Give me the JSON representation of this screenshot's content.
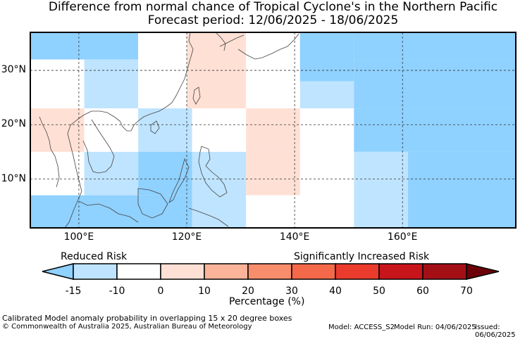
{
  "title": {
    "line1": "Difference from normal chance of Tropical Cyclone's in the Northern Pacific",
    "line2": "Forecast period: 12/06/2025 - 18/06/2025"
  },
  "map": {
    "lon_ticks": [
      "100°E",
      "120°E",
      "140°E",
      "160°E"
    ],
    "lat_ticks": [
      "30°N",
      "20°N",
      "10°N"
    ],
    "lon_range": [
      91,
      181
    ],
    "lat_range": [
      1,
      37
    ],
    "cells": [
      {
        "lon": [
          91,
          111
        ],
        "lat": [
          32,
          37
        ],
        "value": -20
      },
      {
        "lon": [
          111,
          131
        ],
        "lat": [
          32,
          37
        ],
        "value": 0
      },
      {
        "lon": [
          131,
          151
        ],
        "lat": [
          32,
          37
        ],
        "value": 0
      },
      {
        "lon": [
          151,
          181
        ],
        "lat": [
          32,
          37
        ],
        "value": -20
      },
      {
        "lon": [
          91,
          101
        ],
        "lat": [
          28,
          32
        ],
        "value": 0
      },
      {
        "lon": [
          101,
          111
        ],
        "lat": [
          28,
          32
        ],
        "value": -12
      },
      {
        "lon": [
          111,
          120
        ],
        "lat": [
          28,
          37
        ],
        "value": 0
      },
      {
        "lon": [
          120,
          131
        ],
        "lat": [
          28,
          37
        ],
        "value": 5
      },
      {
        "lon": [
          131,
          141
        ],
        "lat": [
          28,
          37
        ],
        "value": 0
      },
      {
        "lon": [
          141,
          151
        ],
        "lat": [
          28,
          37
        ],
        "value": -20
      },
      {
        "lon": [
          141,
          151
        ],
        "lat": [
          23,
          28
        ],
        "value": -12
      },
      {
        "lon": [
          151,
          181
        ],
        "lat": [
          23,
          32
        ],
        "value": -20
      },
      {
        "lon": [
          101,
          111
        ],
        "lat": [
          23,
          28
        ],
        "value": -12
      },
      {
        "lon": [
          91,
          101
        ],
        "lat": [
          23,
          28
        ],
        "value": 0
      },
      {
        "lon": [
          111,
          120
        ],
        "lat": [
          23,
          28
        ],
        "value": 0
      },
      {
        "lon": [
          120,
          131
        ],
        "lat": [
          23,
          28
        ],
        "value": 5
      },
      {
        "lon": [
          131,
          141
        ],
        "lat": [
          23,
          28
        ],
        "value": 0
      },
      {
        "lon": [
          91,
          101
        ],
        "lat": [
          15,
          23
        ],
        "value": 5
      },
      {
        "lon": [
          101,
          111
        ],
        "lat": [
          15,
          23
        ],
        "value": 0
      },
      {
        "lon": [
          111,
          121
        ],
        "lat": [
          15,
          23
        ],
        "value": -12
      },
      {
        "lon": [
          121,
          131
        ],
        "lat": [
          15,
          23
        ],
        "value": 0
      },
      {
        "lon": [
          131,
          141
        ],
        "lat": [
          15,
          23
        ],
        "value": 5
      },
      {
        "lon": [
          141,
          151
        ],
        "lat": [
          15,
          23
        ],
        "value": 0
      },
      {
        "lon": [
          151,
          181
        ],
        "lat": [
          15,
          23
        ],
        "value": -20
      },
      {
        "lon": [
          91,
          101
        ],
        "lat": [
          7,
          15
        ],
        "value": 0
      },
      {
        "lon": [
          101,
          111
        ],
        "lat": [
          7,
          15
        ],
        "value": -12
      },
      {
        "lon": [
          111,
          121
        ],
        "lat": [
          7,
          15
        ],
        "value": -20
      },
      {
        "lon": [
          121,
          131
        ],
        "lat": [
          1,
          15
        ],
        "value": -12
      },
      {
        "lon": [
          131,
          141
        ],
        "lat": [
          7,
          15
        ],
        "value": 5
      },
      {
        "lon": [
          141,
          151
        ],
        "lat": [
          1,
          15
        ],
        "value": 0
      },
      {
        "lon": [
          151,
          161
        ],
        "lat": [
          1,
          15
        ],
        "value": -12
      },
      {
        "lon": [
          161,
          181
        ],
        "lat": [
          1,
          15
        ],
        "value": -20
      },
      {
        "lon": [
          131,
          141
        ],
        "lat": [
          1,
          7
        ],
        "value": 0
      },
      {
        "lon": [
          91,
          121
        ],
        "lat": [
          1,
          7
        ],
        "value": -20
      }
    ]
  },
  "colorbar": {
    "label_left": "Reduced Risk",
    "label_right": "Significantly Increased Risk",
    "ticks": [
      "-15",
      "-10",
      "0",
      "10",
      "20",
      "30",
      "40",
      "50",
      "60",
      "70"
    ],
    "colors": [
      "#8fd1ff",
      "#bfe4ff",
      "#ffffff",
      "#ffe0d4",
      "#fbb49a",
      "#f88d6c",
      "#f4694a",
      "#ea3b2c",
      "#c8151b",
      "#a40f16",
      "#6b0008"
    ],
    "xlabel": "Percentage (%)"
  },
  "footer": {
    "desc": "Calibrated Model anomaly probability in overlapping 15 x 20 degree boxes",
    "copyright": "© Commonwealth of Australia 2025, Australian Bureau of Meteorology",
    "model": "Model: ACCESS_S2",
    "run": "Model Run: 04/06/2025",
    "issued": "Issued: 06/06/2025"
  }
}
